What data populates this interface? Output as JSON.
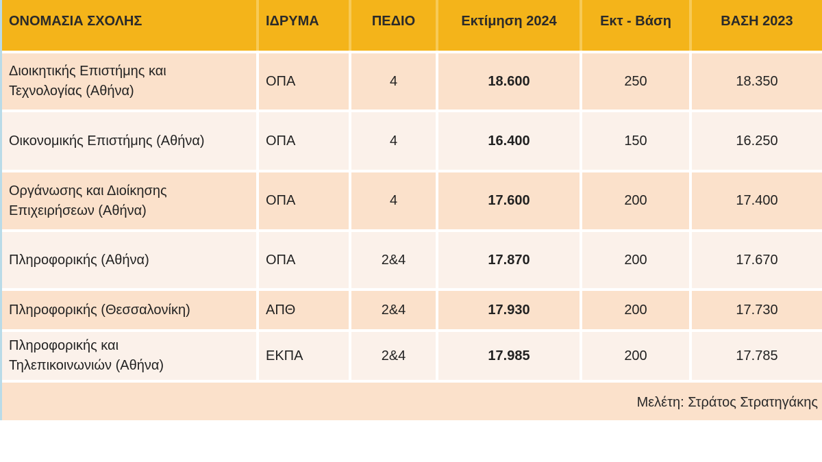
{
  "headers": {
    "school_name": "ΟΝΟΜΑΣΙΑ ΣΧΟΛΗΣ",
    "institution": "ΙΔΡΥΜΑ",
    "field": "ΠΕΔΙΟ",
    "estimate_2024": "Εκτίμηση  2024",
    "estimate_minus_base": "Εκτ - Βάση",
    "base_2023": "ΒΑΣΗ 2023"
  },
  "rows": [
    {
      "school_line1": "Διοικητικής Επιστήμης και",
      "school_line2": "Τεχνολογίας (Αθήνα)",
      "institution": "ΟΠΑ",
      "field": "4",
      "estimate_2024": "18.600",
      "difference": "250",
      "base_2023": "18.350"
    },
    {
      "school_line1": "Οικονομικής Επιστήμης (Αθήνα)",
      "school_line2": "",
      "institution": "ΟΠΑ",
      "field": "4",
      "estimate_2024": "16.400",
      "difference": "150",
      "base_2023": "16.250"
    },
    {
      "school_line1": "Οργάνωσης και Διοίκησης",
      "school_line2": "Επιχειρήσεων (Αθήνα)",
      "institution": "ΟΠΑ",
      "field": "4",
      "estimate_2024": "17.600",
      "difference": "200",
      "base_2023": "17.400"
    },
    {
      "school_line1": "Πληροφορικής (Αθήνα)",
      "school_line2": "",
      "institution": "ΟΠΑ",
      "field": "2&4",
      "estimate_2024": "17.870",
      "difference": "200",
      "base_2023": "17.670"
    },
    {
      "school_line1": "Πληροφορικής (Θεσσαλονίκη)",
      "school_line2": "",
      "institution": "ΑΠΘ",
      "field": "2&4",
      "estimate_2024": "17.930",
      "difference": "200",
      "base_2023": "17.730"
    },
    {
      "school_line1": "Πληροφορικής και",
      "school_line2": "Τηλεπικοινωνιών (Αθήνα)",
      "institution": "ΕΚΠΑ",
      "field": "2&4",
      "estimate_2024": "17.985",
      "difference": "200",
      "base_2023": "17.785"
    }
  ],
  "footer": {
    "credit": "Μελέτη: Στράτος Στρατηγάκης"
  },
  "colors": {
    "header_bg": "#f4b41a",
    "row_odd_bg": "#fbe1cb",
    "row_even_bg": "#fbf1ea"
  }
}
